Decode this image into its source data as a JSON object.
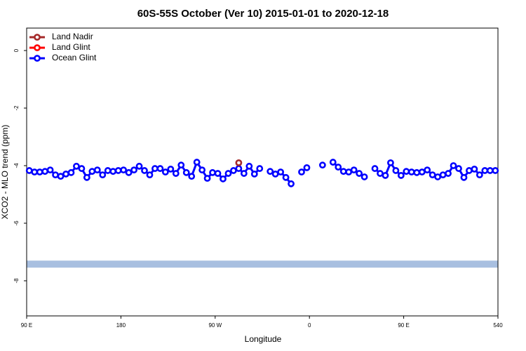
{
  "chart_data": {
    "type": "line",
    "title": "60S-55S October (Ver 10)   2015-01-01 to 2020-12-18",
    "xlabel": "Longitude",
    "ylabel": "XCO2 - MLO trend (ppm)",
    "xlim": [
      90,
      540
    ],
    "ylim": [
      -9.22,
      0.78
    ],
    "xticks": [
      {
        "value": 90,
        "label": "90 E"
      },
      180,
      {
        "value": 270,
        "label": "90 W"
      },
      {
        "value": 360,
        "label": "0"
      },
      {
        "value": 450,
        "label": "90 E"
      },
      540
    ],
    "yticks": [
      0,
      -2,
      -4,
      -6,
      -8
    ],
    "legend": "top-left",
    "band": {
      "value": -7.42,
      "color": "#a8bfe0"
    },
    "series": [
      {
        "name": "Land Nadir",
        "color": "#a52a2a",
        "x": [
          292.5
        ],
        "values": [
          -3.9
        ]
      },
      {
        "name": "Land Glint",
        "color": "#ff0000",
        "x": [],
        "values": []
      },
      {
        "name": "Ocean Glint",
        "color": "#0000ff",
        "x": [
          92.5,
          97.5,
          102.5,
          107.5,
          112.5,
          117.5,
          122.5,
          127.5,
          132.5,
          137.5,
          142.5,
          147.5,
          152.5,
          157.5,
          162.5,
          167.5,
          172.5,
          177.5,
          182.5,
          187.5,
          192.5,
          197.5,
          202.5,
          207.5,
          212.5,
          217.5,
          222.5,
          227.5,
          232.5,
          237.5,
          242.5,
          247.5,
          252.5,
          257.5,
          262.5,
          267.5,
          272.5,
          277.5,
          282.5,
          287.5,
          292.5,
          297.5,
          302.5,
          307.5,
          312.5,
          317.5,
          322.5,
          327.5,
          332.5,
          337.5,
          342.5,
          347.5,
          352.5,
          357.5,
          362.5,
          367.5,
          372.5,
          377.5,
          382.5,
          387.5,
          392.5,
          397.5,
          402.5,
          407.5,
          412.5,
          417.5,
          422.5,
          427.5,
          432.5,
          437.5,
          442.5,
          447.5,
          452.5,
          457.5,
          462.5,
          467.5,
          472.5,
          477.5,
          482.5,
          487.5,
          492.5,
          497.5,
          502.5,
          507.5,
          512.5,
          517.5,
          522.5,
          527.5,
          532.5,
          537.5
        ],
        "values": [
          -4.17,
          -4.22,
          -4.22,
          -4.2,
          -4.15,
          -4.32,
          -4.37,
          -4.29,
          -4.24,
          -4.02,
          -4.1,
          -4.41,
          -4.2,
          -4.15,
          -4.32,
          -4.17,
          -4.2,
          -4.17,
          -4.15,
          -4.24,
          -4.15,
          -4.02,
          -4.17,
          -4.32,
          -4.1,
          -4.1,
          -4.22,
          -4.12,
          -4.27,
          -3.98,
          -4.24,
          -4.37,
          -3.88,
          -4.15,
          -4.44,
          -4.24,
          -4.27,
          -4.46,
          -4.27,
          -4.17,
          -4.1,
          -4.27,
          -4.02,
          -4.29,
          -4.1,
          null,
          -4.2,
          -4.29,
          -4.22,
          -4.41,
          -4.63,
          null,
          -4.22,
          -4.07,
          null,
          null,
          -3.98,
          null,
          -3.88,
          -4.05,
          -4.2,
          -4.22,
          -4.15,
          -4.27,
          -4.39,
          null,
          -4.1,
          -4.27,
          -4.34,
          -3.9,
          -4.17,
          -4.34,
          -4.2,
          -4.22,
          -4.24,
          -4.22,
          -4.15,
          -4.32,
          -4.39,
          -4.32,
          -4.27,
          -4.0,
          -4.1,
          -4.41,
          -4.17,
          -4.12,
          -4.32,
          -4.17,
          -4.17,
          -4.17
        ]
      }
    ]
  }
}
